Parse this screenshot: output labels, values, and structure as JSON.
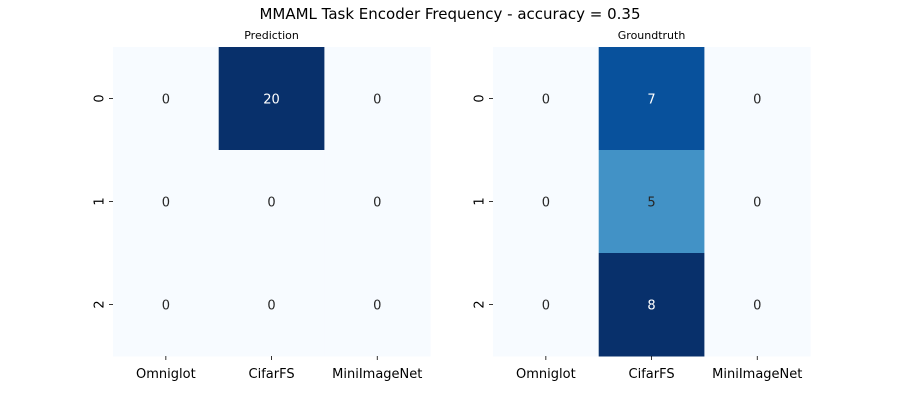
{
  "figure": {
    "title": "MMAML Task Encoder Frequency - accuracy = 0.35"
  },
  "chart_data": [
    {
      "type": "heatmap",
      "title": "Prediction",
      "x_categories": [
        "Omniglot",
        "CifarFS",
        "MiniImageNet"
      ],
      "y_categories": [
        "0",
        "1",
        "2"
      ],
      "values": [
        [
          0,
          20,
          0
        ],
        [
          0,
          0,
          0
        ],
        [
          0,
          0,
          0
        ]
      ],
      "color_max": 20,
      "colormap": "Blues"
    },
    {
      "type": "heatmap",
      "title": "Groundtruth",
      "x_categories": [
        "Omniglot",
        "CifarFS",
        "MiniImageNet"
      ],
      "y_categories": [
        "0",
        "1",
        "2"
      ],
      "values": [
        [
          0,
          7,
          0
        ],
        [
          0,
          5,
          0
        ],
        [
          0,
          8,
          0
        ]
      ],
      "color_max": 8,
      "colormap": "Blues"
    }
  ]
}
